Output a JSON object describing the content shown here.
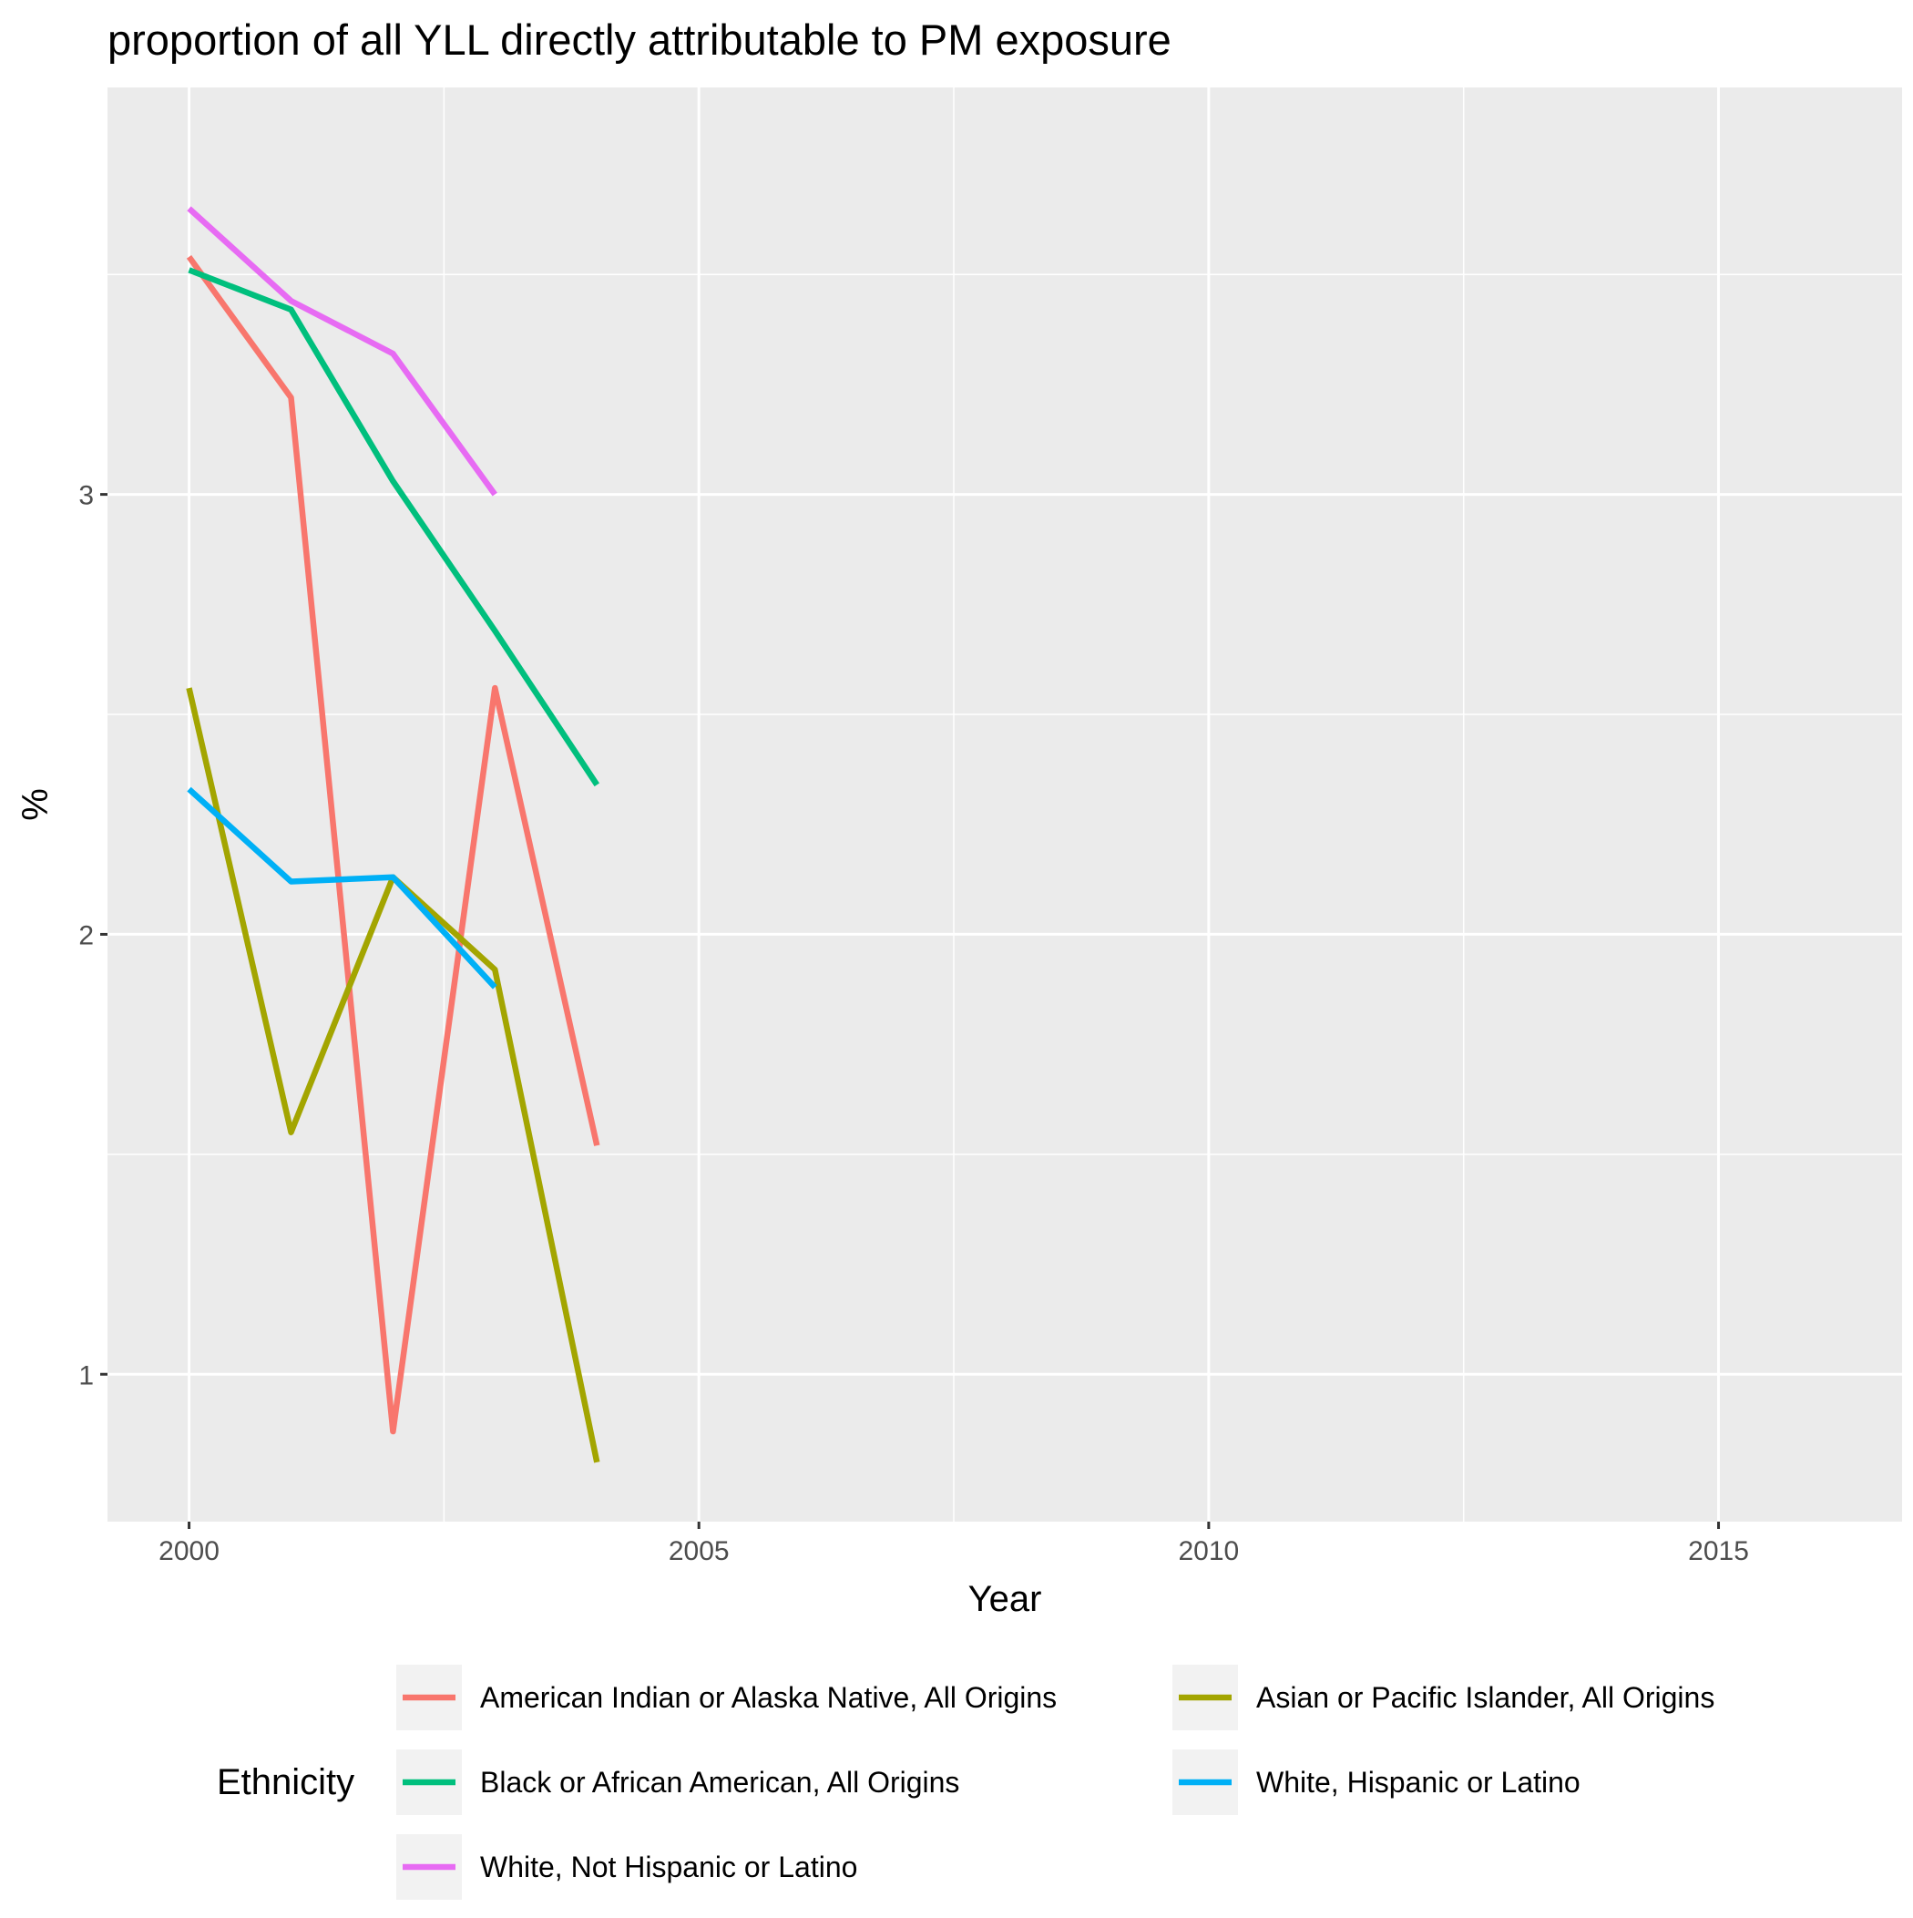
{
  "chart_data": {
    "type": "line",
    "title": "proportion of all YLL directly attributable to PM exposure",
    "xlabel": "Year",
    "ylabel": "%",
    "xlim": [
      1999.2,
      2016.8
    ],
    "ylim": [
      0.665,
      3.925
    ],
    "x_ticks": [
      2000,
      2005,
      2010,
      2015
    ],
    "x_tick_labels": [
      "2000",
      "2005",
      "2010",
      "2015"
    ],
    "y_ticks": [
      1,
      2,
      3
    ],
    "y_tick_labels": [
      "1",
      "2",
      "3"
    ],
    "grid": true,
    "legend": {
      "title": "Ethnicity",
      "position": "bottom",
      "columns": 2
    },
    "series": [
      {
        "name": "American Indian or Alaska Native, All Origins",
        "color": "#F8766D",
        "x": [
          2000,
          2001,
          2002,
          2003,
          2004
        ],
        "values": [
          3.54,
          3.22,
          0.87,
          2.56,
          1.52
        ]
      },
      {
        "name": "Asian or Pacific Islander, All Origins",
        "color": "#A3A500",
        "x": [
          2000,
          2001,
          2002,
          2003,
          2004
        ],
        "values": [
          2.56,
          1.55,
          2.13,
          1.92,
          0.8
        ]
      },
      {
        "name": "Black or African American, All Origins",
        "color": "#00BF7D",
        "x": [
          2000,
          2001,
          2002,
          2003,
          2004
        ],
        "values": [
          3.51,
          3.42,
          3.03,
          2.69,
          2.34
        ]
      },
      {
        "name": "White, Hispanic or Latino",
        "color": "#00B0F6",
        "x": [
          2000,
          2001,
          2002,
          2003
        ],
        "values": [
          2.33,
          2.12,
          2.13,
          1.88
        ]
      },
      {
        "name": "White, Not Hispanic or Latino",
        "color": "#E76BF3",
        "x": [
          2000,
          2001,
          2002,
          2003
        ],
        "values": [
          3.65,
          3.44,
          3.32,
          3.0
        ]
      }
    ]
  }
}
